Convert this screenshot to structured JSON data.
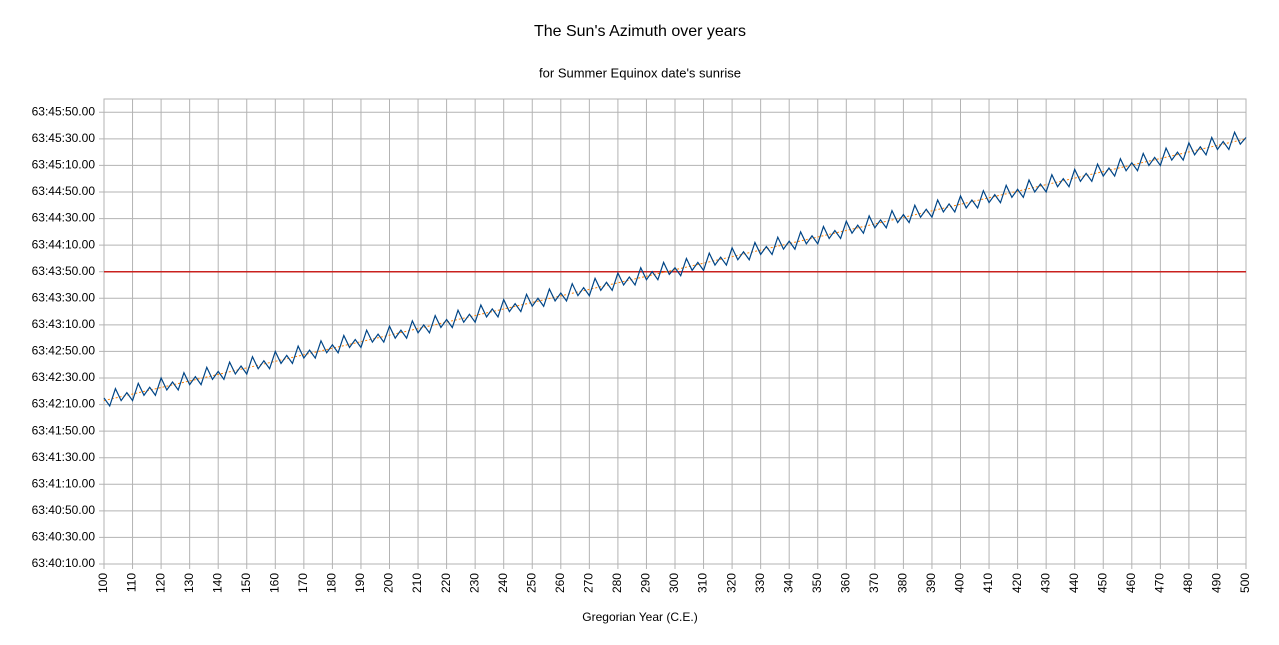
{
  "chart_data": {
    "type": "line",
    "title": "The Sun's Azimuth over years",
    "subtitle": "for Summer Equinox date's sunrise",
    "x_label": "Gregorian Year (C.E.)",
    "x": [
      100,
      102,
      104,
      106,
      108,
      110,
      112,
      114,
      116,
      118,
      120,
      122,
      124,
      126,
      128,
      130,
      132,
      134,
      136,
      138,
      140,
      142,
      144,
      146,
      148,
      150,
      152,
      154,
      156,
      158,
      160,
      162,
      164,
      166,
      168,
      170,
      172,
      174,
      176,
      178,
      180,
      182,
      184,
      186,
      188,
      190,
      192,
      194,
      196,
      198,
      200,
      202,
      204,
      206,
      208,
      210,
      212,
      214,
      216,
      218,
      220,
      222,
      224,
      226,
      228,
      230,
      232,
      234,
      236,
      238,
      240,
      242,
      244,
      246,
      248,
      250,
      252,
      254,
      256,
      258,
      260,
      262,
      264,
      266,
      268,
      270,
      272,
      274,
      276,
      278,
      280,
      282,
      284,
      286,
      288,
      290,
      292,
      294,
      296,
      298,
      300,
      302,
      304,
      306,
      308,
      310,
      312,
      314,
      316,
      318,
      320,
      322,
      324,
      326,
      328,
      330,
      332,
      334,
      336,
      338,
      340,
      342,
      344,
      346,
      348,
      350,
      352,
      354,
      356,
      358,
      360,
      362,
      364,
      366,
      368,
      370,
      372,
      374,
      376,
      378,
      380,
      382,
      384,
      386,
      388,
      390,
      392,
      394,
      396,
      398,
      400,
      402,
      404,
      406,
      408,
      410,
      412,
      414,
      416,
      418,
      420,
      422,
      424,
      426,
      428,
      430,
      432,
      434,
      436,
      438,
      440,
      442,
      444,
      446,
      448,
      450,
      452,
      454,
      456,
      458,
      460,
      462,
      464,
      466,
      468,
      470,
      472,
      474,
      476,
      478,
      480,
      482,
      484,
      486,
      488,
      490,
      492,
      494,
      496,
      498,
      500
    ],
    "series": [
      {
        "color": "#004586",
        "values": [
          229335,
          229329,
          229342,
          229333,
          229339,
          229333,
          229346,
          229337,
          229343,
          229337,
          229350,
          229341,
          229347,
          229341,
          229354,
          229345,
          229351,
          229345,
          229358,
          229349,
          229355,
          229349,
          229362,
          229353,
          229359,
          229353,
          229366,
          229357,
          229363,
          229357,
          229370,
          229361,
          229367,
          229361,
          229374,
          229365,
          229371,
          229365,
          229378,
          229369,
          229375,
          229369,
          229382,
          229373,
          229379,
          229373,
          229386,
          229377,
          229383,
          229377,
          229389,
          229380,
          229386,
          229380,
          229393,
          229384,
          229390,
          229384,
          229397,
          229388,
          229394,
          229388,
          229401,
          229392,
          229398,
          229392,
          229405,
          229396,
          229402,
          229396,
          229409,
          229400,
          229406,
          229400,
          229413,
          229404,
          229410,
          229404,
          229417,
          229408,
          229414,
          229408,
          229421,
          229412,
          229418,
          229412,
          229425,
          229416,
          229422,
          229416,
          229429,
          229420,
          229426,
          229420,
          229433,
          229424,
          229430,
          229424,
          229437,
          229428,
          229433,
          229427,
          229440,
          229431,
          229437,
          229431,
          229444,
          229435,
          229441,
          229435,
          229448,
          229439,
          229445,
          229439,
          229452,
          229443,
          229449,
          229443,
          229456,
          229447,
          229453,
          229447,
          229460,
          229451,
          229457,
          229451,
          229464,
          229455,
          229461,
          229455,
          229468,
          229459,
          229465,
          229459,
          229472,
          229463,
          229469,
          229463,
          229476,
          229467,
          229473,
          229467,
          229480,
          229471,
          229477,
          229471,
          229484,
          229475,
          229481,
          229475,
          229487,
          229478,
          229484,
          229478,
          229491,
          229482,
          229488,
          229482,
          229495,
          229486,
          229492,
          229486,
          229499,
          229490,
          229496,
          229490,
          229503,
          229494,
          229500,
          229494,
          229507,
          229498,
          229504,
          229498,
          229511,
          229502,
          229508,
          229502,
          229515,
          229506,
          229512,
          229506,
          229519,
          229510,
          229516,
          229510,
          229523,
          229514,
          229520,
          229514,
          229527,
          229518,
          229524,
          229518,
          229531,
          229522,
          229528,
          229522,
          229535,
          229526,
          229531
        ]
      }
    ],
    "trendline": {
      "color": "#ff8000",
      "x": [
        100,
        500
      ],
      "values": [
        229333,
        229530
      ]
    },
    "reference_line": {
      "value": 229430,
      "color": "#c9211e"
    },
    "xlim": [
      100,
      500
    ],
    "xticks": [
      100,
      110,
      120,
      130,
      140,
      150,
      160,
      170,
      180,
      190,
      200,
      210,
      220,
      230,
      240,
      250,
      260,
      270,
      280,
      290,
      300,
      310,
      320,
      330,
      340,
      350,
      360,
      370,
      380,
      390,
      400,
      410,
      420,
      430,
      440,
      450,
      460,
      470,
      480,
      490,
      500
    ],
    "ylim": [
      229210,
      229560
    ],
    "yticks": [
      {
        "value": 229210,
        "label": "63:40:10.00"
      },
      {
        "value": 229230,
        "label": "63:40:30.00"
      },
      {
        "value": 229250,
        "label": "63:40:50.00"
      },
      {
        "value": 229270,
        "label": "63:41:10.00"
      },
      {
        "value": 229290,
        "label": "63:41:30.00"
      },
      {
        "value": 229310,
        "label": "63:41:50.00"
      },
      {
        "value": 229330,
        "label": "63:42:10.00"
      },
      {
        "value": 229350,
        "label": "63:42:30.00"
      },
      {
        "value": 229370,
        "label": "63:42:50.00"
      },
      {
        "value": 229390,
        "label": "63:43:10.00"
      },
      {
        "value": 229410,
        "label": "63:43:30.00"
      },
      {
        "value": 229430,
        "label": "63:43:50.00"
      },
      {
        "value": 229450,
        "label": "63:44:10.00"
      },
      {
        "value": 229470,
        "label": "63:44:30.00"
      },
      {
        "value": 229490,
        "label": "63:44:50.00"
      },
      {
        "value": 229510,
        "label": "63:45:10.00"
      },
      {
        "value": 229530,
        "label": "63:45:30.00"
      },
      {
        "value": 229550,
        "label": "63:45:50.00"
      }
    ],
    "grid": true
  }
}
